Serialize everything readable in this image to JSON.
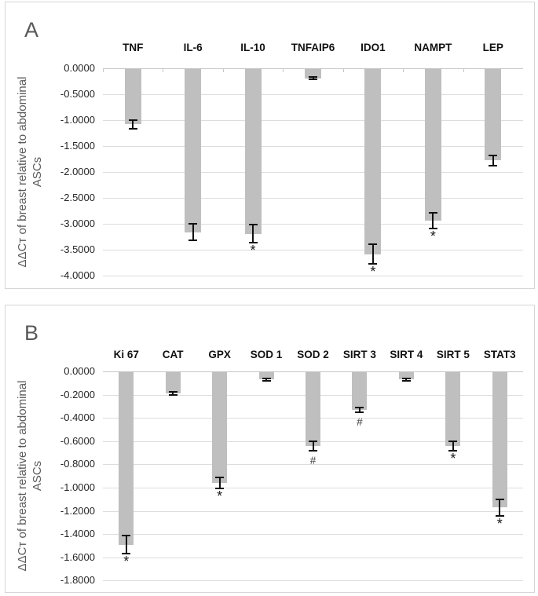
{
  "figure": {
    "description_note": "Two-panel vertical bar chart figure with error bars and significance markers"
  },
  "colors": {
    "bar": "#bfbfbf",
    "gridline": "#dddddd",
    "zero_line": "#c6c6c6",
    "error_bar": "#111111",
    "axis_text": "#262626",
    "category_text": "#111111",
    "panel_letter": "#595959",
    "axis_title": "#595959",
    "panel_border": "#d6d6d6"
  },
  "chart_data": [
    {
      "panel": "A",
      "type": "bar",
      "orientation": "vertical",
      "categories": [
        "TNF",
        "IL-6",
        "IL-10",
        "TNFAIP6",
        "IDO1",
        "NAMPT",
        "LEP"
      ],
      "values": [
        -1.08,
        -3.16,
        -3.19,
        -0.19,
        -3.59,
        -2.94,
        -1.78
      ],
      "errors": [
        0.08,
        0.16,
        0.17,
        0.02,
        0.19,
        0.15,
        0.1
      ],
      "significance": [
        "",
        "",
        "*",
        "",
        "*",
        "*",
        ""
      ],
      "ylabel": "ΔΔCᴛ of breast relative to abdominal ASCs",
      "ylabel_lines": [
        "ΔΔCᴛ of breast relative to abdominal",
        "ASCs"
      ],
      "ylim": [
        -4.0,
        0.0
      ],
      "ytick_step": 0.5,
      "ytick_labels": [
        "0.0000",
        "-0.5000",
        "-1.0000",
        "-1.5000",
        "-2.0000",
        "-2.5000",
        "-3.0000",
        "-3.5000",
        "-4.0000"
      ],
      "grid": true,
      "legend": null,
      "error_bars": true
    },
    {
      "panel": "B",
      "type": "bar",
      "orientation": "vertical",
      "categories": [
        "Ki 67",
        "CAT",
        "GPX",
        "SOD 1",
        "SOD 2",
        "SIRT 3",
        "SIRT 4",
        "SIRT 5",
        "STAT3"
      ],
      "values": [
        -1.49,
        -0.19,
        -0.96,
        -0.07,
        -0.64,
        -0.33,
        -0.07,
        -0.64,
        -1.17
      ],
      "errors": [
        0.08,
        0.015,
        0.05,
        0.008,
        0.04,
        0.02,
        0.008,
        0.04,
        0.07
      ],
      "significance": [
        "*",
        "",
        "*",
        "",
        "#",
        "#",
        "",
        "*",
        "*"
      ],
      "ylabel": "ΔΔCᴛ of breast relative to abdominal ASCs",
      "ylabel_lines": [
        "ΔΔCᴛ of breast relative to abdominal",
        "ASCs"
      ],
      "ylim": [
        -1.8,
        0.0
      ],
      "ytick_step": 0.2,
      "ytick_labels": [
        "0.0000",
        "-0.2000",
        "-0.4000",
        "-0.6000",
        "-0.8000",
        "-1.0000",
        "-1.2000",
        "-1.4000",
        "-1.6000",
        "-1.8000"
      ],
      "grid": true,
      "legend": null,
      "error_bars": true
    }
  ]
}
